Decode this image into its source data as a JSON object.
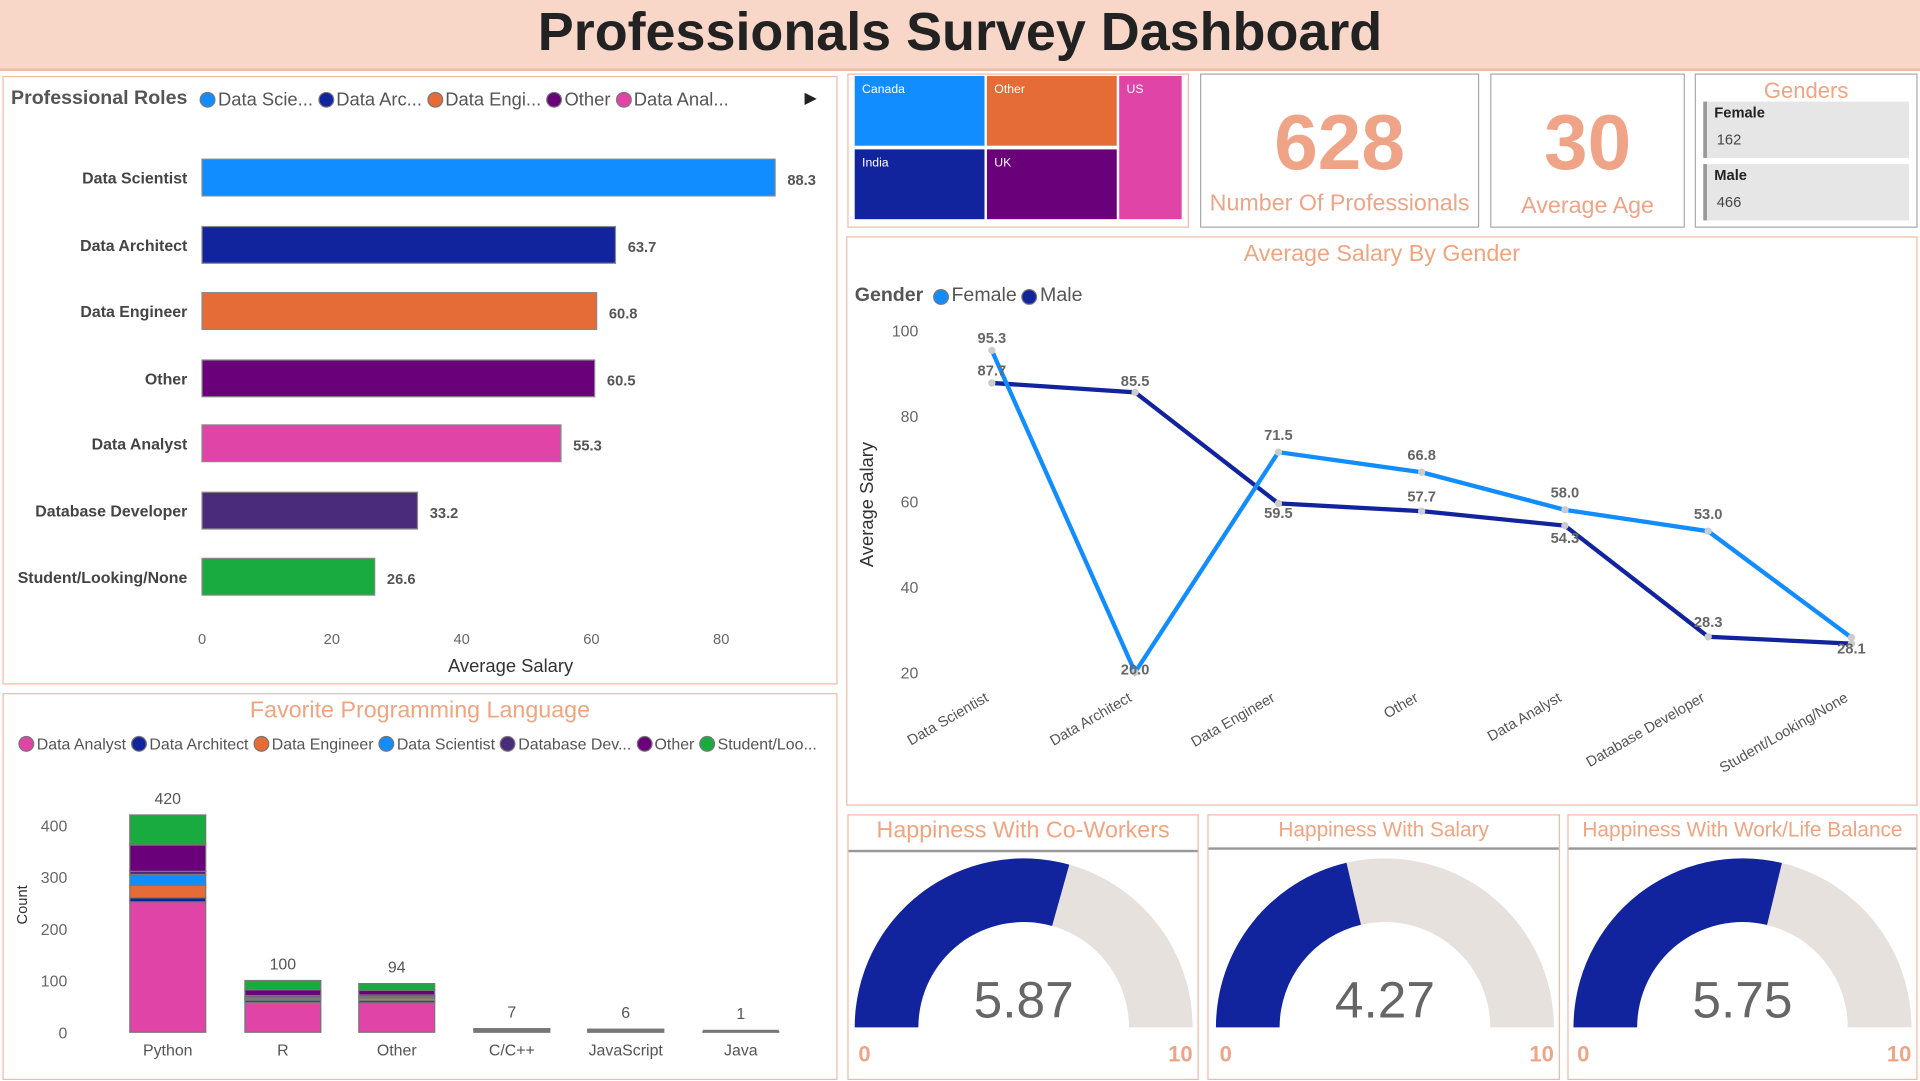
{
  "header": {
    "title": "Professionals Survey Dashboard"
  },
  "colors": {
    "accent": "#f0a487",
    "data_scientist": "#118dff",
    "data_architect": "#12239e",
    "data_engineer": "#e66c37",
    "other": "#6b007b",
    "data_analyst": "#e044a7",
    "database_developer": "#4a2a7a",
    "student": "#1aab40",
    "gauge_fill": "#12239e",
    "gauge_track": "#e6e1dd"
  },
  "roles_chart": {
    "legend_title": "Professional Roles",
    "legend": [
      "Data Scie...",
      "Data Arc...",
      "Data Engi...",
      "Other",
      "Data Anal..."
    ],
    "legend_next_icon": "caret-right-icon"
  },
  "treemap": {
    "cells": [
      {
        "label": "Canada",
        "color": "#118dff"
      },
      {
        "label": "Other",
        "color": "#e66c37"
      },
      {
        "label": "India",
        "color": "#12239e"
      },
      {
        "label": "UK",
        "color": "#6b007b"
      },
      {
        "label": "US",
        "color": "#e044a7"
      }
    ]
  },
  "kpis": [
    {
      "value": "628",
      "label": "Number Of Professionals"
    },
    {
      "value": "30",
      "label": "Average Age"
    }
  ],
  "genders": {
    "title": "Genders",
    "items": [
      {
        "label": "Female",
        "value": "162"
      },
      {
        "label": "Male",
        "value": "466"
      }
    ]
  },
  "gauges": [
    {
      "title": "Happiness With Co-Workers",
      "value": 5.87,
      "display": "5.87",
      "min": "0",
      "max": "10"
    },
    {
      "title": "Happiness With Salary",
      "value": 4.27,
      "display": "4.27",
      "min": "0",
      "max": "10"
    },
    {
      "title": "Happiness With Work/Life Balance",
      "value": 5.75,
      "display": "5.75",
      "min": "0",
      "max": "10"
    }
  ],
  "chart_data": [
    {
      "type": "bar",
      "orientation": "horizontal",
      "categories": [
        "Data Scientist",
        "Data Architect",
        "Data Engineer",
        "Other",
        "Data Analyst",
        "Database Developer",
        "Student/Looking/None"
      ],
      "values": [
        88.3,
        63.7,
        60.8,
        60.5,
        55.3,
        33.2,
        26.6
      ],
      "labels": [
        "88.3",
        "63.7",
        "60.8",
        "60.5",
        "55.3",
        "33.2",
        "26.6"
      ],
      "colors": [
        "#118dff",
        "#12239e",
        "#e66c37",
        "#6b007b",
        "#e044a7",
        "#4a2a7a",
        "#1aab40"
      ],
      "xlabel": "Average Salary",
      "xlim": [
        0,
        88.3
      ],
      "xticks": [
        "0",
        "20",
        "40",
        "60",
        "80"
      ],
      "grid": false,
      "legend": "top"
    },
    {
      "type": "bar",
      "stacked": true,
      "title": "Favorite Programming Language",
      "categories": [
        "Python",
        "R",
        "Other",
        "C/C++",
        "JavaScript",
        "Java"
      ],
      "series": [
        {
          "name": "Data Analyst",
          "color": "#e044a7",
          "values": [
            252,
            58,
            57,
            4,
            4,
            1
          ]
        },
        {
          "name": "Data Architect",
          "color": "#12239e",
          "values": [
            8,
            4,
            4,
            0,
            0,
            0
          ]
        },
        {
          "name": "Data Engineer",
          "color": "#e66c37",
          "values": [
            24,
            3,
            5,
            1,
            0,
            0
          ]
        },
        {
          "name": "Data Scientist",
          "color": "#118dff",
          "values": [
            21,
            3,
            3,
            0,
            1,
            0
          ]
        },
        {
          "name": "Database Dev...",
          "color": "#4a2a7a",
          "values": [
            6,
            3,
            3,
            0,
            0,
            0
          ]
        },
        {
          "name": "Other",
          "color": "#6b007b",
          "values": [
            51,
            11,
            9,
            1,
            1,
            0
          ]
        },
        {
          "name": "Student/Loo...",
          "color": "#1aab40",
          "values": [
            58,
            18,
            13,
            1,
            0,
            0
          ]
        }
      ],
      "totals": [
        "420",
        "100",
        "94",
        "7",
        "6",
        "1"
      ],
      "ylabel": "Count",
      "ylim": [
        0,
        420
      ],
      "yticks": [
        "0",
        "100",
        "200",
        "300",
        "400"
      ],
      "legend": "top"
    },
    {
      "type": "line",
      "title": "Average Salary By Gender",
      "legend_title": "Gender",
      "legend": "top-left",
      "categories": [
        "Data Scientist",
        "Data Architect",
        "Data Engineer",
        "Other",
        "Data Analyst",
        "Database Developer",
        "Student/Looking/None"
      ],
      "series": [
        {
          "name": "Female",
          "color": "#118dff",
          "values": [
            95.3,
            20.0,
            71.5,
            66.8,
            58.0,
            53.0,
            28.1
          ],
          "labels": [
            "95.3",
            "20.0",
            "71.5",
            "66.8",
            "58.0",
            "53.0",
            "28.1"
          ]
        },
        {
          "name": "Male",
          "color": "#12239e",
          "values": [
            87.7,
            85.5,
            59.5,
            57.7,
            54.3,
            28.3,
            26.7
          ],
          "labels": [
            "87.7",
            "85.5",
            "59.5",
            "57.7",
            "54.3",
            "28.3",
            ""
          ]
        }
      ],
      "ylabel": "Average Salary",
      "ylim": [
        20,
        100
      ],
      "yticks": [
        "20",
        "40",
        "60",
        "80",
        "100"
      ],
      "grid": false
    }
  ]
}
